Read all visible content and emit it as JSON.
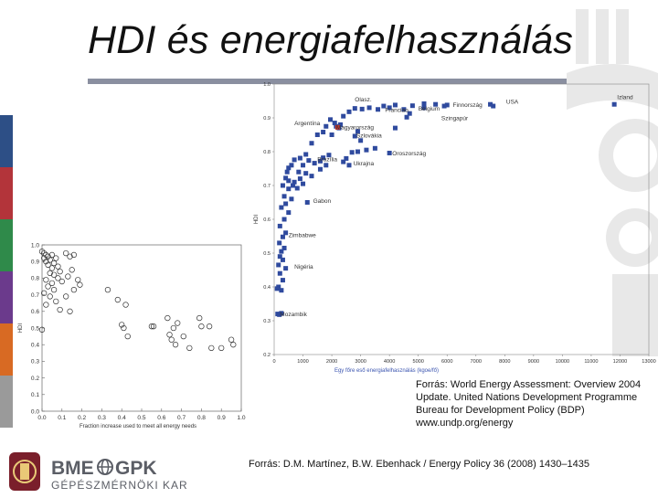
{
  "slide": {
    "title": "HDI és energiafelhasználás",
    "source_1": "Forrás: World Energy Assessment: Overview 2004 Update. United Nations Development Programme Bureau for Development Policy (BDP) www.undp.org/energy",
    "source_2": "Forrás: D.M. Martínez, B.W. Ebenhack / Energy Policy 36 (2008) 1430–1435"
  },
  "colors": {
    "title_rule": "#8a8fa0",
    "point_blue": "#2f4a9e",
    "point_red": "#c4332a",
    "accent_stripes": [
      "#2d4f86",
      "#b3343a",
      "#2f8a4a",
      "#6b3a8c",
      "#d86a23",
      "#9a9a9a"
    ]
  },
  "logo": {
    "main": "BME GPK",
    "sub": "GÉPÉSZMÉRNÖKI KAR",
    "icon": "bme-crest-icon",
    "separator_icon": "globe-icon"
  },
  "chart_data": [
    {
      "type": "scatter",
      "title": "",
      "xlabel": "Fraction increase used to meet all energy needs",
      "ylabel": "HDI",
      "xlim": [
        0.0,
        1.0
      ],
      "ylim": [
        0.0,
        1.0
      ],
      "x_ticks": [
        "0.0",
        "0.1",
        "0.2",
        "0.3",
        "0.4",
        "0.5",
        "0.6",
        "0.7",
        "0.8",
        "0.9",
        "1.0"
      ],
      "y_ticks": [
        "0.0",
        "0.1",
        "0.2",
        "0.3",
        "0.4",
        "0.5",
        "0.6",
        "0.7",
        "0.8",
        "0.9",
        "1.0"
      ],
      "marker": "open-circle",
      "points": [
        [
          0.0,
          0.96
        ],
        [
          0.01,
          0.95
        ],
        [
          0.02,
          0.94
        ],
        [
          0.01,
          0.92
        ],
        [
          0.03,
          0.93
        ],
        [
          0.02,
          0.9
        ],
        [
          0.04,
          0.91
        ],
        [
          0.05,
          0.94
        ],
        [
          0.03,
          0.88
        ],
        [
          0.05,
          0.86
        ],
        [
          0.07,
          0.92
        ],
        [
          0.06,
          0.89
        ],
        [
          0.08,
          0.87
        ],
        [
          0.04,
          0.83
        ],
        [
          0.06,
          0.82
        ],
        [
          0.09,
          0.84
        ],
        [
          0.02,
          0.79
        ],
        [
          0.05,
          0.77
        ],
        [
          0.08,
          0.8
        ],
        [
          0.1,
          0.78
        ],
        [
          0.03,
          0.75
        ],
        [
          0.06,
          0.73
        ],
        [
          0.01,
          0.71
        ],
        [
          0.04,
          0.69
        ],
        [
          0.07,
          0.66
        ],
        [
          0.02,
          0.64
        ],
        [
          0.12,
          0.95
        ],
        [
          0.14,
          0.93
        ],
        [
          0.16,
          0.94
        ],
        [
          0.15,
          0.85
        ],
        [
          0.13,
          0.81
        ],
        [
          0.18,
          0.79
        ],
        [
          0.19,
          0.76
        ],
        [
          0.16,
          0.73
        ],
        [
          0.12,
          0.69
        ],
        [
          0.09,
          0.61
        ],
        [
          0.14,
          0.6
        ],
        [
          0.0,
          0.49
        ],
        [
          0.33,
          0.73
        ],
        [
          0.38,
          0.67
        ],
        [
          0.42,
          0.64
        ],
        [
          0.4,
          0.52
        ],
        [
          0.41,
          0.5
        ],
        [
          0.43,
          0.45
        ],
        [
          0.55,
          0.51
        ],
        [
          0.56,
          0.51
        ],
        [
          0.63,
          0.56
        ],
        [
          0.66,
          0.5
        ],
        [
          0.68,
          0.53
        ],
        [
          0.64,
          0.46
        ],
        [
          0.65,
          0.43
        ],
        [
          0.67,
          0.4
        ],
        [
          0.71,
          0.45
        ],
        [
          0.74,
          0.38
        ],
        [
          0.79,
          0.56
        ],
        [
          0.8,
          0.51
        ],
        [
          0.84,
          0.51
        ],
        [
          0.85,
          0.38
        ],
        [
          0.9,
          0.38
        ],
        [
          0.95,
          0.43
        ],
        [
          0.96,
          0.4
        ]
      ]
    },
    {
      "type": "scatter",
      "title": "",
      "xlabel": "Egy főre eső energiafelhasználás (kgoe/fő)",
      "ylabel": "HDI",
      "xlim": [
        0,
        13000
      ],
      "ylim": [
        0.2,
        1.0
      ],
      "x_ticks": [
        "0",
        "1000",
        "2000",
        "3000",
        "4000",
        "5000",
        "6000",
        "7000",
        "8000",
        "9000",
        "10000",
        "11000",
        "12000",
        "13000"
      ],
      "y_ticks": [
        "0.2",
        "0.3",
        "0.4",
        "0.5",
        "0.6",
        "0.7",
        "0.8",
        "0.9",
        "1.0"
      ],
      "marker": "filled-square",
      "labels": [
        {
          "text": "Izland",
          "x": 11900,
          "y": 0.955
        },
        {
          "text": "USA",
          "x": 8050,
          "y": 0.942
        },
        {
          "text": "Finnország",
          "x": 6200,
          "y": 0.932
        },
        {
          "text": "Olasz.",
          "x": 2800,
          "y": 0.948
        },
        {
          "text": "Belgium",
          "x": 5000,
          "y": 0.922
        },
        {
          "text": "Franciao.",
          "x": 3850,
          "y": 0.918
        },
        {
          "text": "Szingapúr",
          "x": 5800,
          "y": 0.893
        },
        {
          "text": "Argentína",
          "x": 700,
          "y": 0.878
        },
        {
          "text": "Magyarország",
          "x": 2150,
          "y": 0.866
        },
        {
          "text": "Szlovákia",
          "x": 2850,
          "y": 0.842
        },
        {
          "text": "Oroszország",
          "x": 4100,
          "y": 0.789
        },
        {
          "text": "Brazília",
          "x": 1500,
          "y": 0.772
        },
        {
          "text": "Ukrajna",
          "x": 2750,
          "y": 0.76
        },
        {
          "text": "Gabon",
          "x": 1350,
          "y": 0.648
        },
        {
          "text": "Zimbabwe",
          "x": 500,
          "y": 0.547
        },
        {
          "text": "Nigéria",
          "x": 700,
          "y": 0.454
        },
        {
          "text": "Mozambik",
          "x": 200,
          "y": 0.314
        }
      ],
      "points": [
        [
          11800,
          0.94
        ],
        [
          7500,
          0.94
        ],
        [
          7600,
          0.935
        ],
        [
          6000,
          0.938
        ],
        [
          5900,
          0.935
        ],
        [
          5600,
          0.94
        ],
        [
          5200,
          0.942
        ],
        [
          5200,
          0.93
        ],
        [
          4800,
          0.936
        ],
        [
          4500,
          0.925
        ],
        [
          4200,
          0.938
        ],
        [
          4000,
          0.93
        ],
        [
          3800,
          0.935
        ],
        [
          3600,
          0.925
        ],
        [
          3300,
          0.93
        ],
        [
          3050,
          0.926
        ],
        [
          2800,
          0.928
        ],
        [
          2600,
          0.918
        ],
        [
          2400,
          0.905
        ],
        [
          4700,
          0.913
        ],
        [
          4600,
          0.902
        ],
        [
          4200,
          0.87
        ],
        [
          2300,
          0.88
        ],
        [
          2150,
          0.875
        ],
        [
          1950,
          0.895
        ],
        [
          1800,
          0.875
        ],
        [
          2900,
          0.86
        ],
        [
          2800,
          0.846
        ],
        [
          1700,
          0.858
        ],
        [
          3000,
          0.833
        ],
        [
          3500,
          0.81
        ],
        [
          3200,
          0.805
        ],
        [
          2900,
          0.8
        ],
        [
          2700,
          0.798
        ],
        [
          4000,
          0.796
        ],
        [
          2500,
          0.78
        ],
        [
          2400,
          0.77
        ],
        [
          2600,
          0.76
        ],
        [
          1900,
          0.79
        ],
        [
          1700,
          0.782
        ],
        [
          1600,
          0.772
        ],
        [
          1400,
          0.766
        ],
        [
          1200,
          0.774
        ],
        [
          1100,
          0.792
        ],
        [
          900,
          0.781
        ],
        [
          700,
          0.776
        ],
        [
          600,
          0.76
        ],
        [
          500,
          0.752
        ],
        [
          450,
          0.74
        ],
        [
          400,
          0.722
        ],
        [
          500,
          0.714
        ],
        [
          700,
          0.71
        ],
        [
          900,
          0.72
        ],
        [
          1100,
          0.736
        ],
        [
          1300,
          0.728
        ],
        [
          1600,
          0.748
        ],
        [
          1800,
          0.76
        ],
        [
          300,
          0.7
        ],
        [
          500,
          0.69
        ],
        [
          650,
          0.7
        ],
        [
          800,
          0.692
        ],
        [
          350,
          0.668
        ],
        [
          600,
          0.66
        ],
        [
          400,
          0.646
        ],
        [
          250,
          0.635
        ],
        [
          1150,
          0.65
        ],
        [
          500,
          0.62
        ],
        [
          350,
          0.6
        ],
        [
          200,
          0.58
        ],
        [
          400,
          0.56
        ],
        [
          300,
          0.548
        ],
        [
          180,
          0.53
        ],
        [
          350,
          0.515
        ],
        [
          250,
          0.505
        ],
        [
          200,
          0.49
        ],
        [
          300,
          0.48
        ],
        [
          150,
          0.465
        ],
        [
          400,
          0.455
        ],
        [
          200,
          0.44
        ],
        [
          300,
          0.42
        ],
        [
          150,
          0.4
        ],
        [
          100,
          0.395
        ],
        [
          250,
          0.39
        ],
        [
          120,
          0.32
        ],
        [
          180,
          0.318
        ],
        [
          250,
          0.322
        ],
        [
          2100,
          0.885
        ],
        [
          2250,
          0.87
        ],
        [
          2000,
          0.85
        ],
        [
          1500,
          0.85
        ],
        [
          1300,
          0.825
        ],
        [
          1000,
          0.76
        ],
        [
          850,
          0.74
        ],
        [
          1000,
          0.705
        ]
      ],
      "highlight_points": [
        [
          2200,
          0.872
        ]
      ]
    }
  ]
}
